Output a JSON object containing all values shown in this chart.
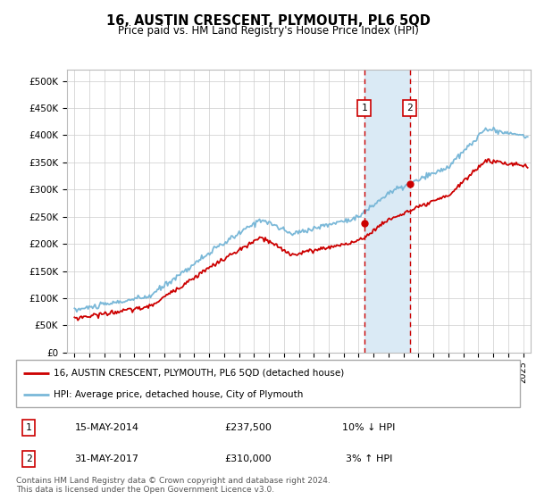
{
  "title": "16, AUSTIN CRESCENT, PLYMOUTH, PL6 5QD",
  "subtitle": "Price paid vs. HM Land Registry's House Price Index (HPI)",
  "ylabel_ticks": [
    "£0",
    "£50K",
    "£100K",
    "£150K",
    "£200K",
    "£250K",
    "£300K",
    "£350K",
    "£400K",
    "£450K",
    "£500K"
  ],
  "ytick_values": [
    0,
    50000,
    100000,
    150000,
    200000,
    250000,
    300000,
    350000,
    400000,
    450000,
    500000
  ],
  "ylim": [
    0,
    520000
  ],
  "xlim_start": 1994.5,
  "xlim_end": 2025.5,
  "sale1_date": 2014.37,
  "sale1_price": 237500,
  "sale2_date": 2017.41,
  "sale2_price": 310000,
  "hpi_line_color": "#7ab8d8",
  "price_line_color": "#cc0000",
  "shaded_color": "#daeaf5",
  "sale_marker_color": "#cc0000",
  "sale_dashed_color": "#cc0000",
  "legend_label_red": "16, AUSTIN CRESCENT, PLYMOUTH, PL6 5QD (detached house)",
  "legend_label_blue": "HPI: Average price, detached house, City of Plymouth",
  "footnote": "Contains HM Land Registry data © Crown copyright and database right 2024.\nThis data is licensed under the Open Government Licence v3.0.",
  "table_row1": [
    "1",
    "15-MAY-2014",
    "£237,500",
    "10% ↓ HPI"
  ],
  "table_row2": [
    "2",
    "31-MAY-2017",
    "£310,000",
    "3% ↑ HPI"
  ],
  "background_color": "#ffffff",
  "grid_color": "#cccccc"
}
